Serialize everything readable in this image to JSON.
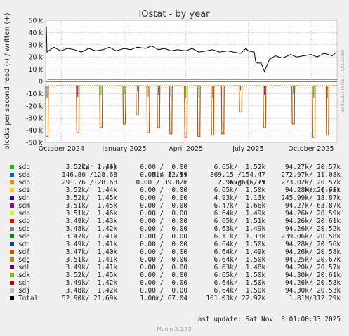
{
  "chart_data": {
    "type": "line",
    "title": "IOstat - by year",
    "ylabel": "blocks per second read (-) / written (+)",
    "side_label": "RRDTOOL / TOBI OETIKER",
    "ylim": [
      -50000,
      50000
    ],
    "y_ticks": [
      {
        "value": 50000,
        "label": "50 k"
      },
      {
        "value": 40000,
        "label": "40 k"
      },
      {
        "value": 30000,
        "label": "30 k"
      },
      {
        "value": 20000,
        "label": "20 k"
      },
      {
        "value": 10000,
        "label": "10 k"
      },
      {
        "value": 0,
        "label": "0"
      },
      {
        "value": -10000,
        "label": "-10 k"
      },
      {
        "value": -20000,
        "label": "-20 k"
      },
      {
        "value": -30000,
        "label": "-30 k"
      },
      {
        "value": -40000,
        "label": "-40 k"
      },
      {
        "value": -50000,
        "label": "-50 k"
      }
    ],
    "x_range": [
      "2024-09-08",
      "2025-11-08"
    ],
    "x_ticks": [
      {
        "date": "2024-10-01",
        "label": "October 2024"
      },
      {
        "date": "2025-01-01",
        "label": "January 2025"
      },
      {
        "date": "2025-04-01",
        "label": "April 2025"
      },
      {
        "date": "2025-07-01",
        "label": "July 2025"
      },
      {
        "date": "2025-10-01",
        "label": "October 2025"
      }
    ],
    "grid": true,
    "colors": {
      "background": "#ffffff",
      "grid": "#ff8080",
      "zero": "#000000",
      "canvas": "#f0f0f0"
    },
    "total_written_series": {
      "name": "Total",
      "x": [
        "2024-09-09",
        "2024-09-10",
        "2024-09-20",
        "2024-09-30",
        "2024-10-10",
        "2024-10-20",
        "2024-10-30",
        "2024-11-10",
        "2024-11-20",
        "2024-12-01",
        "2024-12-10",
        "2024-12-20",
        "2025-01-01",
        "2025-01-10",
        "2025-01-20",
        "2025-02-01",
        "2025-02-10",
        "2025-02-20",
        "2025-03-01",
        "2025-03-10",
        "2025-03-20",
        "2025-04-01",
        "2025-04-10",
        "2025-04-20",
        "2025-05-01",
        "2025-05-10",
        "2025-05-20",
        "2025-06-01",
        "2025-06-10",
        "2025-06-20",
        "2025-06-28",
        "2025-07-01",
        "2025-07-10",
        "2025-07-12",
        "2025-07-15",
        "2025-07-20",
        "2025-07-25",
        "2025-08-01",
        "2025-08-10",
        "2025-08-20",
        "2025-09-01",
        "2025-09-10",
        "2025-09-20",
        "2025-10-01",
        "2025-10-10",
        "2025-10-20",
        "2025-11-01",
        "2025-11-07"
      ],
      "values": [
        45000,
        24000,
        28000,
        25000,
        27000,
        26000,
        24000,
        27000,
        25000,
        26000,
        28000,
        25000,
        27000,
        26000,
        28000,
        27000,
        29000,
        26000,
        27000,
        25000,
        26000,
        25000,
        27000,
        24000,
        25000,
        26000,
        24000,
        25000,
        24000,
        23000,
        27000,
        25000,
        24000,
        16000,
        15000,
        15000,
        8000,
        18000,
        21000,
        19000,
        22000,
        20000,
        21000,
        22000,
        20000,
        23000,
        21000,
        24000
      ]
    },
    "read_level": -3500,
    "read_spikes": [
      {
        "date": "2024-09-10",
        "value": -45000
      },
      {
        "date": "2024-10-25",
        "value": -42000
      },
      {
        "date": "2024-11-28",
        "value": -38000
      },
      {
        "date": "2025-01-01",
        "value": -35000
      },
      {
        "date": "2025-01-20",
        "value": -27000
      },
      {
        "date": "2025-02-05",
        "value": -42000
      },
      {
        "date": "2025-02-20",
        "value": -38000
      },
      {
        "date": "2025-03-10",
        "value": -43000
      },
      {
        "date": "2025-04-01",
        "value": -46000
      },
      {
        "date": "2025-04-20",
        "value": -45000
      },
      {
        "date": "2025-05-10",
        "value": -44000
      },
      {
        "date": "2025-05-25",
        "value": -43000
      },
      {
        "date": "2025-06-20",
        "value": -25000
      },
      {
        "date": "2025-07-25",
        "value": -38000
      },
      {
        "date": "2025-09-05",
        "value": -35000
      },
      {
        "date": "2025-10-05",
        "value": -46000
      },
      {
        "date": "2025-10-25",
        "value": -44000
      }
    ],
    "series": [
      {
        "name": "sdq",
        "color": "#00cc00",
        "cur": "3.52k/  1.46k",
        "min": "0.00 /  0.00",
        "avg": "6.65k/  1.52k",
        "max": "94.27k/ 20.57k"
      },
      {
        "name": "sda",
        "color": "#0066b3",
        "cur": "146.80 /128.68",
        "min": "0.00 / 32.59",
        "avg": "869.15 /154.47",
        "max": "272.97k/ 11.08k"
      },
      {
        "name": "sdb",
        "color": "#ff8000",
        "cur": "291.76 /128.68",
        "min": "0.00 / 39.82m",
        "avg": "2.96k/696.79",
        "max": "273.02k/ 20.57k"
      },
      {
        "name": "sdi",
        "color": "#ffcc00",
        "cur": "3.52k/  1.44k",
        "min": "0.00 /  0.00",
        "avg": "6.65k/  1.50k",
        "max": "94.28k/ 20.65k"
      },
      {
        "name": "sdn",
        "color": "#330099",
        "cur": "3.52k/  1.45k",
        "min": "0.00 /  0.00",
        "avg": "4.93k/  1.13k",
        "max": "245.99k/ 18.87k"
      },
      {
        "name": "sdm",
        "color": "#990099",
        "cur": "3.51k/  1.45k",
        "min": "0.00 /  0.00",
        "avg": "6.47k/  1.66k",
        "max": "94.27k/ 63.87k"
      },
      {
        "name": "sdp",
        "color": "#ccff00",
        "cur": "3.51k/  1.46k",
        "min": "0.00 /  0.00",
        "avg": "6.64k/  1.49k",
        "max": "94.26k/ 20.59k"
      },
      {
        "name": "sdo",
        "color": "#ff0000",
        "cur": "3.49k/  1.43k",
        "min": "0.00 /  0.00",
        "avg": "6.65k/  1.51k",
        "max": "94.26k/ 20.61k"
      },
      {
        "name": "sdc",
        "color": "#808080",
        "cur": "3.48k/  1.42k",
        "min": "0.00 /  0.00",
        "avg": "6.63k/  1.49k",
        "max": "94.26k/ 20.52k"
      },
      {
        "name": "sde",
        "color": "#008f00",
        "cur": "3.47k/  1.41k",
        "min": "0.00 /  0.00",
        "avg": "6.11k/  1.33k",
        "max": "239.06k/ 20.58k"
      },
      {
        "name": "sdd",
        "color": "#00487d",
        "cur": "3.49k/  1.41k",
        "min": "0.00 /  0.00",
        "avg": "6.64k/  1.50k",
        "max": "94.28k/ 20.56k"
      },
      {
        "name": "sdf",
        "color": "#b35a00",
        "cur": "3.47k/  1.40k",
        "min": "0.00 /  0.00",
        "avg": "6.64k/  1.49k",
        "max": "94.26k/ 20.58k"
      },
      {
        "name": "sdg",
        "color": "#b38f00",
        "cur": "3.51k/  1.41k",
        "min": "0.00 /  0.00",
        "avg": "6.64k/  1.50k",
        "max": "94.25k/ 20.67k"
      },
      {
        "name": "sdl",
        "color": "#6b006b",
        "cur": "3.49k/  1.41k",
        "min": "0.00 /  0.00",
        "avg": "6.63k/  1.48k",
        "max": "94.20k/ 20.57k"
      },
      {
        "name": "sdk",
        "color": "#8fb300",
        "cur": "3.52k/  1.45k",
        "min": "0.00 /  0.00",
        "avg": "6.65k/  1.50k",
        "max": "94.30k/ 20.61k"
      },
      {
        "name": "sdh",
        "color": "#b30000",
        "cur": "3.49k/  1.42k",
        "min": "0.00 /  0.00",
        "avg": "6.64k/  1.50k",
        "max": "94.26k/ 20.58k"
      },
      {
        "name": "sdj",
        "color": "#bebebe",
        "cur": "3.48k/  1.42k",
        "min": "0.00 /  0.00",
        "avg": "6.64k/  1.50k",
        "max": "94.30k/ 20.53k"
      },
      {
        "name": "Total",
        "color": "#000000",
        "cur": "52.90k/ 21.69k",
        "min": "1.00m/ 67.04",
        "avg": "101.03k/ 22.92k",
        "max": "1.81M/312.29k"
      }
    ]
  },
  "legend_header": {
    "cur": "Cur (-/+)",
    "min": "Min (-/+)",
    "avg": "Avg (-/+)",
    "max": "Max (-/+)"
  },
  "last_update": "Last update: Sat Nov  8 01:00:33 2025",
  "footer": "Munin 2.0.73"
}
